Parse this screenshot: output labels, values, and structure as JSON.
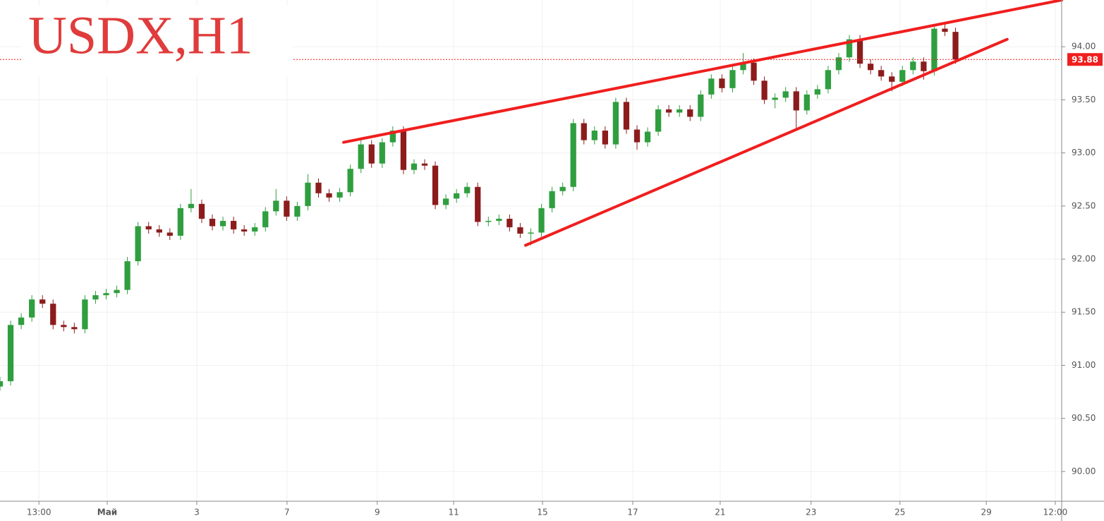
{
  "chart_data": {
    "type": "candlestick",
    "title": "USDX,H1",
    "xlim": [
      0,
      300
    ],
    "ylim": [
      89.72,
      94.44
    ],
    "yticks": [
      {
        "value": 90,
        "label": "90.00"
      },
      {
        "value": 90.5,
        "label": "90.50"
      },
      {
        "value": 91,
        "label": "91.00"
      },
      {
        "value": 91.5,
        "label": "91.50"
      },
      {
        "value": 92,
        "label": "92.00"
      },
      {
        "value": 92.5,
        "label": "92.50"
      },
      {
        "value": 93,
        "label": "93.00"
      },
      {
        "value": 93.5,
        "label": "93.50"
      },
      {
        "value": 94,
        "label": "94.00"
      }
    ],
    "xticks": [
      {
        "value": 11,
        "label": "13:00"
      },
      {
        "value": 30.3,
        "label": "Май"
      },
      {
        "value": 55.6,
        "label": "3"
      },
      {
        "value": 81.1,
        "label": "7"
      },
      {
        "value": 106.6,
        "label": "9"
      },
      {
        "value": 128.2,
        "label": "11"
      },
      {
        "value": 153.3,
        "label": "15"
      },
      {
        "value": 178.8,
        "label": "17"
      },
      {
        "value": 203.5,
        "label": "21"
      },
      {
        "value": 229.2,
        "label": "23"
      },
      {
        "value": 254.3,
        "label": "25"
      },
      {
        "value": 278.7,
        "label": "29"
      },
      {
        "value": 298.2,
        "label": "12:00"
      }
    ],
    "grid": true,
    "up_color": "#2f9e3f",
    "down_color": "#8c1c1c",
    "x": [
      0,
      3,
      6,
      9,
      12,
      15,
      18,
      21,
      24,
      27,
      30,
      33,
      36,
      39,
      42,
      45,
      48,
      51,
      54,
      57,
      60,
      63,
      66,
      69,
      72,
      75,
      78,
      81,
      84,
      87,
      90,
      93,
      96,
      99,
      102,
      105,
      108,
      111,
      114,
      117,
      120,
      123,
      126,
      129,
      132,
      135,
      138,
      141,
      144,
      147,
      150,
      153,
      156,
      159,
      162,
      165,
      168,
      171,
      174,
      177,
      180,
      183,
      186,
      189,
      192,
      195,
      198,
      201,
      204,
      207,
      210,
      213,
      216,
      219,
      222,
      225,
      228,
      231,
      234,
      237,
      240,
      243,
      246,
      249,
      252,
      255,
      258,
      261,
      264,
      267,
      270
    ],
    "open": [
      90.8,
      90.85,
      91.38,
      91.45,
      91.62,
      91.58,
      91.38,
      91.36,
      91.34,
      91.62,
      91.66,
      91.68,
      91.71,
      91.98,
      92.31,
      92.28,
      92.25,
      92.22,
      92.48,
      92.52,
      92.38,
      92.31,
      92.36,
      92.28,
      92.26,
      92.3,
      92.45,
      92.55,
      92.4,
      92.5,
      92.72,
      92.62,
      92.58,
      92.63,
      92.85,
      93.08,
      92.9,
      93.1,
      93.21,
      92.84,
      92.9,
      92.88,
      92.51,
      92.57,
      92.62,
      92.68,
      92.35,
      92.36,
      92.38,
      92.3,
      92.24,
      92.25,
      92.48,
      92.64,
      92.68,
      93.28,
      93.12,
      93.21,
      93.08,
      93.48,
      93.22,
      93.1,
      93.2,
      93.41,
      93.38,
      93.41,
      93.34,
      93.55,
      93.7,
      93.61,
      93.78,
      93.85,
      93.68,
      93.5,
      93.52,
      93.58,
      93.4,
      93.55,
      93.6,
      93.78,
      93.9,
      94.07,
      93.84,
      93.78,
      93.72,
      93.67,
      93.78,
      93.86,
      93.77,
      94.17,
      94.14
    ],
    "high": [
      90.89,
      91.42,
      91.49,
      91.66,
      91.66,
      91.62,
      91.42,
      91.4,
      91.66,
      91.7,
      91.72,
      91.75,
      92.02,
      92.35,
      92.35,
      92.32,
      92.29,
      92.52,
      92.66,
      92.56,
      92.42,
      92.4,
      92.4,
      92.32,
      92.34,
      92.49,
      92.66,
      92.59,
      92.54,
      92.8,
      92.76,
      92.66,
      92.67,
      92.89,
      93.12,
      93.12,
      93.14,
      93.25,
      93.25,
      92.94,
      92.94,
      92.92,
      92.61,
      92.66,
      92.72,
      92.72,
      92.4,
      92.42,
      92.42,
      92.34,
      92.29,
      92.52,
      92.68,
      92.72,
      93.32,
      93.32,
      93.25,
      93.25,
      93.52,
      93.52,
      93.26,
      93.24,
      93.45,
      93.45,
      93.45,
      93.45,
      93.59,
      93.74,
      93.74,
      93.82,
      93.94,
      93.89,
      93.72,
      93.56,
      93.62,
      93.62,
      93.59,
      93.64,
      93.82,
      93.94,
      94.11,
      94.11,
      93.88,
      93.82,
      93.76,
      93.82,
      93.9,
      93.9,
      94.21,
      94.21,
      94.18
    ],
    "low": [
      90.76,
      90.81,
      91.34,
      91.41,
      91.54,
      91.34,
      91.32,
      91.3,
      91.3,
      91.58,
      91.62,
      91.64,
      91.67,
      91.94,
      92.24,
      92.21,
      92.18,
      92.18,
      92.44,
      92.34,
      92.27,
      92.27,
      92.24,
      92.22,
      92.22,
      92.26,
      92.41,
      92.36,
      92.36,
      92.46,
      92.58,
      92.54,
      92.54,
      92.59,
      92.81,
      92.86,
      92.86,
      93.06,
      92.8,
      92.8,
      92.84,
      92.47,
      92.47,
      92.53,
      92.58,
      92.31,
      92.31,
      92.32,
      92.26,
      92.2,
      92.13,
      92.21,
      92.44,
      92.6,
      92.64,
      93.08,
      93.08,
      93.04,
      93.04,
      93.18,
      93.03,
      93.06,
      93.16,
      93.34,
      93.34,
      93.3,
      93.3,
      93.51,
      93.57,
      93.57,
      93.74,
      93.64,
      93.46,
      93.42,
      93.48,
      93.22,
      93.36,
      93.51,
      93.56,
      93.74,
      93.86,
      93.8,
      93.74,
      93.68,
      93.58,
      93.63,
      93.74,
      93.69,
      93.73,
      94.1,
      93.84
    ],
    "close": [
      90.85,
      91.38,
      91.45,
      91.62,
      91.58,
      91.38,
      91.36,
      91.34,
      91.62,
      91.66,
      91.68,
      91.71,
      91.98,
      92.31,
      92.28,
      92.25,
      92.22,
      92.48,
      92.52,
      92.38,
      92.31,
      92.36,
      92.28,
      92.26,
      92.3,
      92.45,
      92.55,
      92.4,
      92.5,
      92.72,
      92.62,
      92.58,
      92.63,
      92.85,
      93.08,
      92.9,
      93.1,
      93.21,
      92.84,
      92.9,
      92.88,
      92.51,
      92.57,
      92.62,
      92.68,
      92.35,
      92.36,
      92.38,
      92.3,
      92.24,
      92.25,
      92.48,
      92.64,
      92.68,
      93.28,
      93.12,
      93.21,
      93.08,
      93.48,
      93.22,
      93.1,
      93.2,
      93.41,
      93.38,
      93.41,
      93.34,
      93.55,
      93.7,
      93.61,
      93.78,
      93.85,
      93.68,
      93.5,
      93.52,
      93.58,
      93.4,
      93.55,
      93.6,
      93.78,
      93.9,
      94.07,
      93.84,
      93.78,
      93.72,
      93.67,
      93.78,
      93.86,
      93.77,
      94.17,
      94.14,
      93.88
    ],
    "trendlines": [
      {
        "color": "#f01e1e",
        "x": [
          97.1,
          300
        ],
        "y": [
          93.1,
          94.44
        ]
      },
      {
        "color": "#f01e1e",
        "x": [
          148.5,
          284.6
        ],
        "y": [
          92.13,
          94.07
        ]
      }
    ],
    "last_price": 93.88,
    "last_price_color": "#f01e1e"
  }
}
